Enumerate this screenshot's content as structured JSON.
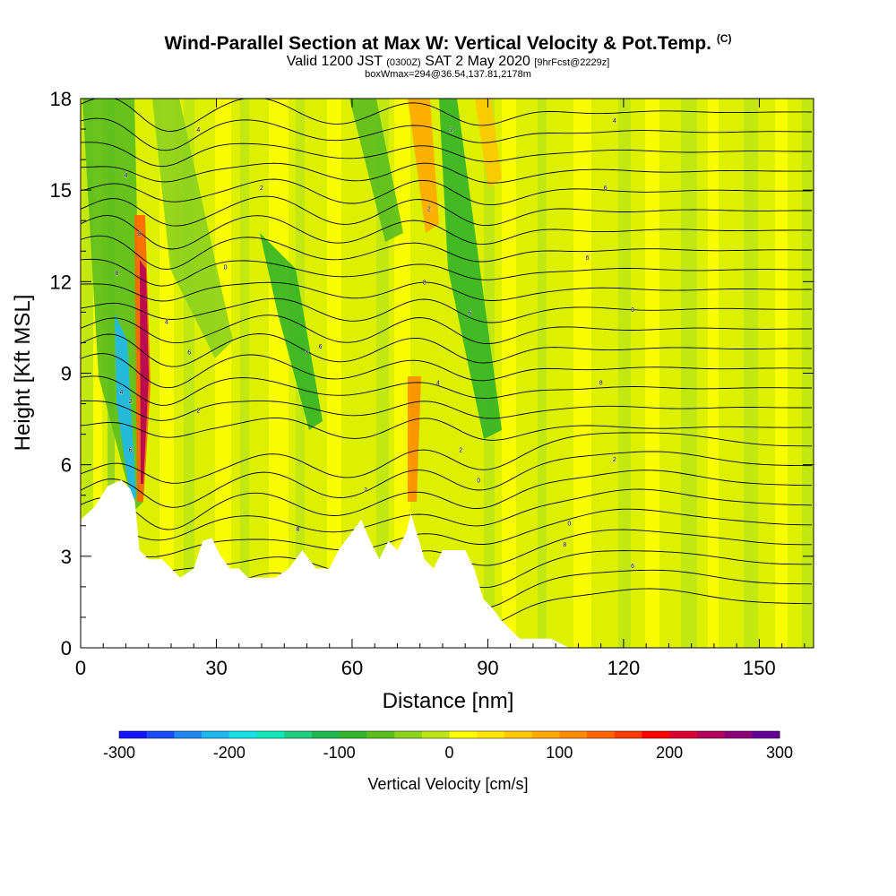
{
  "title": {
    "main": "Wind-Parallel Section at Max W: Vertical Velocity & Pot.Temp.",
    "main_mark": "(C)",
    "valid_prefix": "Valid 1200 JST",
    "valid_utc": "(0300Z)",
    "valid_date": "SAT 2 May 2020",
    "forecast": "[9hrFcst@2229z]",
    "box_info": "boxWmax=294@36.54,137.81,2178m"
  },
  "chart_data": {
    "type": "heatmap",
    "xlabel": "Distance [nm]",
    "ylabel": "Height [Kft MSL]",
    "xlim": [
      0,
      162
    ],
    "ylim": [
      0,
      18
    ],
    "xticks": [
      0,
      30,
      60,
      90,
      120,
      150
    ],
    "yticks": [
      0,
      3,
      6,
      9,
      12,
      15,
      18
    ],
    "colorbar": {
      "label": "Vertical Velocity [cm/s]",
      "range": [
        -300,
        300
      ],
      "ticks": [
        -300,
        -200,
        -100,
        0,
        100,
        200,
        300
      ],
      "colors": [
        "#1414ff",
        "#1a4cf5",
        "#1e88ee",
        "#1eb8f0",
        "#14e0e8",
        "#10e8b8",
        "#20cc80",
        "#1eb850",
        "#32b428",
        "#5abe1e",
        "#8cd21e",
        "#bee614",
        "#ffff00",
        "#ffe600",
        "#ffc800",
        "#ffaa00",
        "#ff8c00",
        "#ff6400",
        "#ff3c00",
        "#ff0000",
        "#dc0032",
        "#b4005a",
        "#8c0078",
        "#640096"
      ]
    },
    "terrain": [
      [
        0,
        4.2
      ],
      [
        3,
        4.6
      ],
      [
        6,
        5.3
      ],
      [
        9,
        5.5
      ],
      [
        11,
        5.2
      ],
      [
        12,
        4.8
      ],
      [
        13,
        3.2
      ],
      [
        15,
        2.9
      ],
      [
        18,
        2.9
      ],
      [
        20,
        2.6
      ],
      [
        22,
        2.3
      ],
      [
        25,
        2.6
      ],
      [
        27,
        3.5
      ],
      [
        29,
        3.6
      ],
      [
        31,
        3.0
      ],
      [
        33,
        2.6
      ],
      [
        35,
        2.6
      ],
      [
        37,
        2.3
      ],
      [
        40,
        2.3
      ],
      [
        43,
        2.3
      ],
      [
        46,
        2.6
      ],
      [
        49,
        3.2
      ],
      [
        52,
        2.6
      ],
      [
        55,
        2.6
      ],
      [
        57,
        3.2
      ],
      [
        60,
        3.8
      ],
      [
        62,
        4.2
      ],
      [
        64,
        3.5
      ],
      [
        66,
        2.9
      ],
      [
        68,
        3.5
      ],
      [
        70,
        3.2
      ],
      [
        72,
        3.8
      ],
      [
        73,
        4.4
      ],
      [
        74,
        3.9
      ],
      [
        76,
        2.9
      ],
      [
        78,
        2.6
      ],
      [
        80,
        3.2
      ],
      [
        82,
        3.2
      ],
      [
        85,
        3.2
      ],
      [
        87,
        2.6
      ],
      [
        89,
        1.6
      ],
      [
        91,
        1.3
      ],
      [
        93,
        0.9
      ],
      [
        95,
        0.6
      ],
      [
        97,
        0.3
      ],
      [
        100,
        0.3
      ],
      [
        104,
        0.3
      ],
      [
        108,
        0.0
      ],
      [
        113,
        0.0
      ],
      [
        162,
        0.0
      ]
    ],
    "isentrope_labels": [
      {
        "x": 26,
        "y": 17.0,
        "text": "4"
      },
      {
        "x": 10,
        "y": 15.5,
        "text": "4"
      },
      {
        "x": 40,
        "y": 15.1,
        "text": "2"
      },
      {
        "x": 82,
        "y": 17.0,
        "text": "2"
      },
      {
        "x": 118,
        "y": 17.3,
        "text": "4"
      },
      {
        "x": 116,
        "y": 15.1,
        "text": "6"
      },
      {
        "x": 77,
        "y": 14.4,
        "text": "2"
      },
      {
        "x": 13,
        "y": 13.6,
        "text": "8"
      },
      {
        "x": 32,
        "y": 12.5,
        "text": "0"
      },
      {
        "x": 8,
        "y": 12.3,
        "text": "8"
      },
      {
        "x": 76,
        "y": 12.0,
        "text": "8"
      },
      {
        "x": 112,
        "y": 12.8,
        "text": "6"
      },
      {
        "x": 122,
        "y": 11.1,
        "text": "0"
      },
      {
        "x": 19,
        "y": 10.7,
        "text": "4"
      },
      {
        "x": 86,
        "y": 11.0,
        "text": "6"
      },
      {
        "x": 50,
        "y": 9.7,
        "text": "0"
      },
      {
        "x": 53,
        "y": 9.9,
        "text": "6"
      },
      {
        "x": 24,
        "y": 9.7,
        "text": "6"
      },
      {
        "x": 9,
        "y": 8.4,
        "text": "4"
      },
      {
        "x": 11,
        "y": 8.1,
        "text": "2"
      },
      {
        "x": 79,
        "y": 8.7,
        "text": "4"
      },
      {
        "x": 115,
        "y": 8.7,
        "text": "8"
      },
      {
        "x": 26,
        "y": 7.8,
        "text": "2"
      },
      {
        "x": 84,
        "y": 6.5,
        "text": "2"
      },
      {
        "x": 118,
        "y": 6.2,
        "text": "2"
      },
      {
        "x": 11,
        "y": 6.5,
        "text": "6"
      },
      {
        "x": 63,
        "y": 5.2,
        "text": "2"
      },
      {
        "x": 88,
        "y": 5.5,
        "text": "0"
      },
      {
        "x": 108,
        "y": 4.1,
        "text": "0"
      },
      {
        "x": 48,
        "y": 3.9,
        "text": "8"
      },
      {
        "x": 107,
        "y": 3.4,
        "text": "8"
      },
      {
        "x": 122,
        "y": 2.7,
        "text": "6"
      }
    ]
  }
}
